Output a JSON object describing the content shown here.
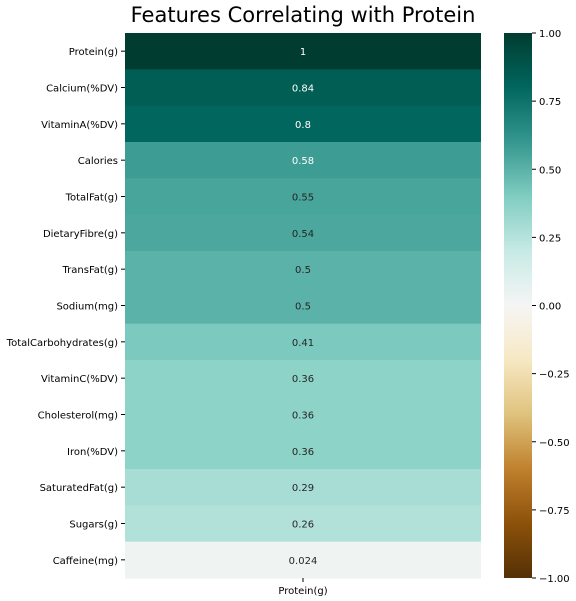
{
  "chart_data": {
    "type": "heatmap",
    "title": "Features Correlating with Protein",
    "columns": [
      "Protein(g)"
    ],
    "rows": [
      "Protein(g)",
      "Calcium(%DV)",
      "VitaminA(%DV)",
      "Calories",
      "TotalFat(g)",
      "DietaryFibre(g)",
      "TransFat(g)",
      "Sodium(mg)",
      "TotalCarbohydrates(g)",
      "VitaminC(%DV)",
      "Cholesterol(mg)",
      "Iron(%DV)",
      "SaturatedFat(g)",
      "Sugars(g)",
      "Caffeine(mg)"
    ],
    "values": [
      1,
      0.84,
      0.8,
      0.58,
      0.55,
      0.54,
      0.5,
      0.5,
      0.41,
      0.36,
      0.36,
      0.36,
      0.29,
      0.26,
      0.024
    ],
    "value_labels": [
      "1",
      "0.84",
      "0.8",
      "0.58",
      "0.55",
      "0.54",
      "0.5",
      "0.5",
      "0.41",
      "0.36",
      "0.36",
      "0.36",
      "0.29",
      "0.26",
      "0.024"
    ],
    "colormap": "BrBG",
    "vmin": -1,
    "vmax": 1,
    "colorbar_ticks": [
      1.0,
      0.75,
      0.5,
      0.25,
      0.0,
      -0.25,
      -0.5,
      -0.75,
      -1.0
    ],
    "colorbar_tick_labels": [
      "1.00",
      "0.75",
      "0.50",
      "0.25",
      "0.00",
      "−0.25",
      "−0.50",
      "−0.75",
      "−1.00"
    ],
    "grid": false
  }
}
